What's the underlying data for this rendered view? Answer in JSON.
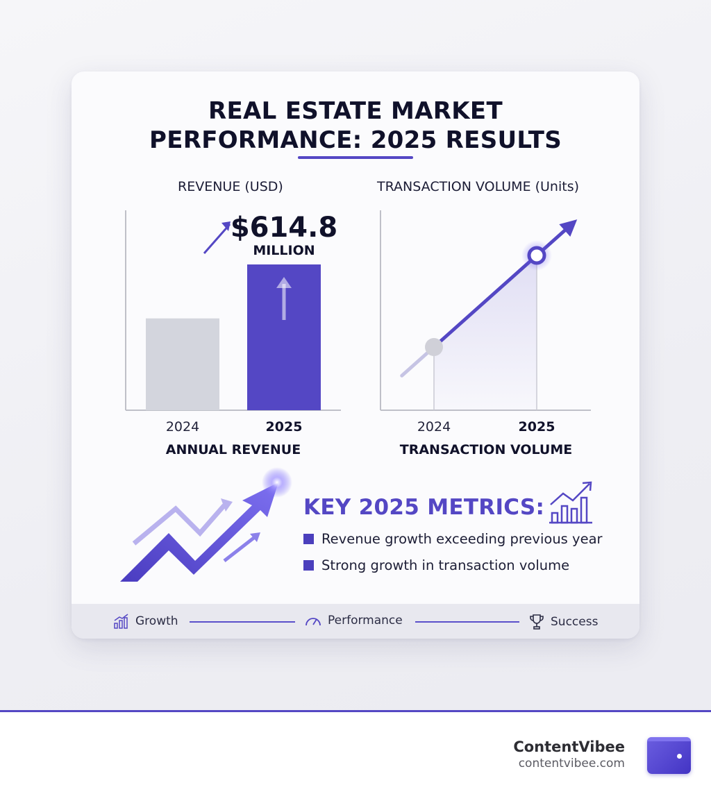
{
  "title_line1": "REAL ESTATE MARKET",
  "title_line2": "PERFORMANCE: 2025 RESULTS",
  "chart_data": [
    {
      "type": "bar",
      "title": "REVENUE (USD)",
      "xlabel": "ANNUAL REVENUE",
      "categories": [
        "2024",
        "2025"
      ],
      "values": [
        0.63,
        1.0
      ],
      "highlight_category": "2025",
      "annotation": {
        "value": "$614.8",
        "unit": "MILLION"
      },
      "colors": {
        "2024": "#d3d5dd",
        "2025": "#5447c4"
      }
    },
    {
      "type": "line",
      "title": "TRANSACTION VOLUME (Units)",
      "xlabel": "TRANSACTION VOLUME",
      "x": [
        "2024",
        "2025"
      ],
      "values": [
        0.3,
        1.0
      ],
      "highlight_category": "2025",
      "colors": {
        "line": "#5447c4",
        "start_marker": "#d0d0d8",
        "end_marker": "#5447c4"
      }
    }
  ],
  "metrics": {
    "title": "KEY 2025 METRICS:",
    "items": [
      "Revenue growth exceeding previous year",
      "Strong growth in transaction volume"
    ]
  },
  "footer_strip": {
    "items": [
      {
        "label": "Growth",
        "icon": "bar-chart-icon"
      },
      {
        "label": "Performance",
        "icon": "gauge-icon"
      },
      {
        "label": "Success",
        "icon": "trophy-icon"
      }
    ]
  },
  "brand": {
    "name": "ContentVibee",
    "url": "contentvibee.com"
  },
  "colors": {
    "accent": "#5447c4",
    "text": "#12132b"
  }
}
